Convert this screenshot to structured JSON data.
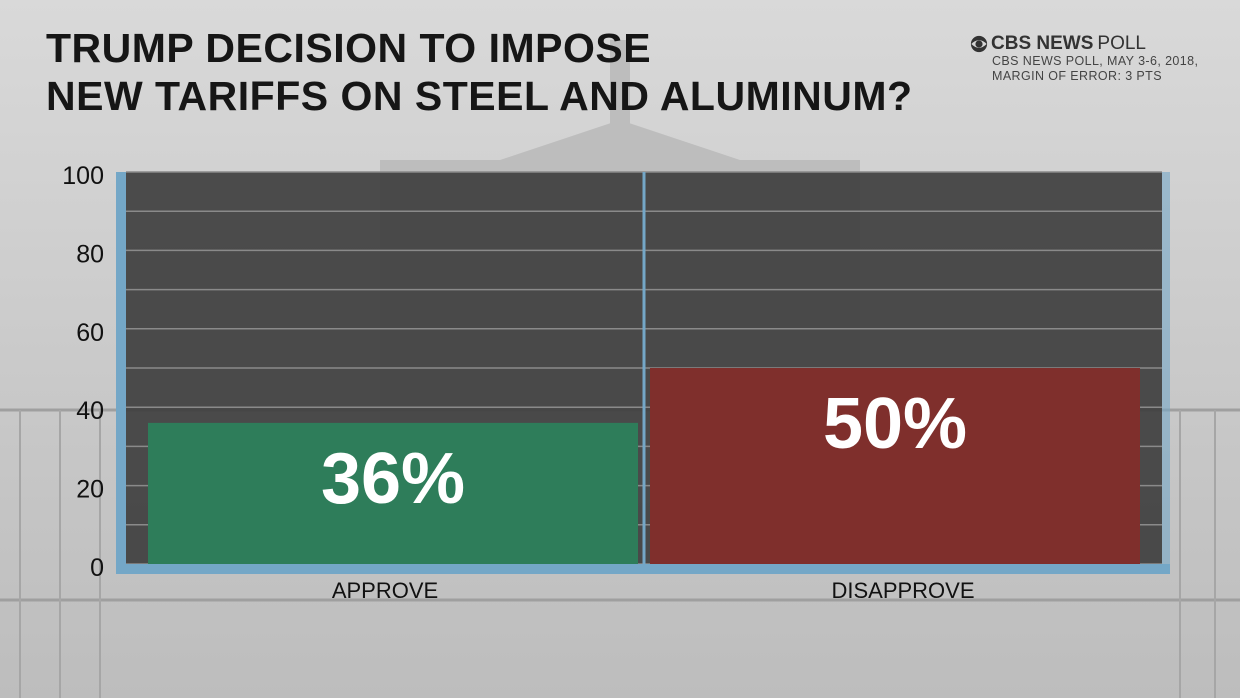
{
  "title_lines": [
    "TRUMP DECISION TO IMPOSE",
    "NEW TARIFFS ON STEEL AND ALUMINUM?"
  ],
  "source": {
    "brand_bold": "CBS NEWS",
    "brand_light": "POLL",
    "lines": [
      "CBS NEWS POLL, MAY 3-6, 2018,",
      "MARGIN OF ERROR: 3 PTS"
    ],
    "logo_icon": "cbs-eye-icon"
  },
  "colors": {
    "plot_bg": "#3c3c3c",
    "axis": "#74a7c7",
    "gridline": "#8a8a8a",
    "approve": "#2e7d5a",
    "disapprove": "#7f2f2c",
    "label_text": "#111111",
    "value_text": "#ffffff"
  },
  "chart_data": {
    "type": "bar",
    "categories": [
      "APPROVE",
      "DISAPPROVE"
    ],
    "values": [
      36,
      50
    ],
    "value_labels": [
      "36%",
      "50%"
    ],
    "ylim": [
      0,
      100
    ],
    "yticks": [
      "0",
      "20",
      "40",
      "60",
      "80",
      "100"
    ],
    "grid": true,
    "title": "TRUMP DECISION TO IMPOSE NEW TARIFFS ON STEEL AND ALUMINUM?",
    "xlabel": "",
    "ylabel": ""
  }
}
